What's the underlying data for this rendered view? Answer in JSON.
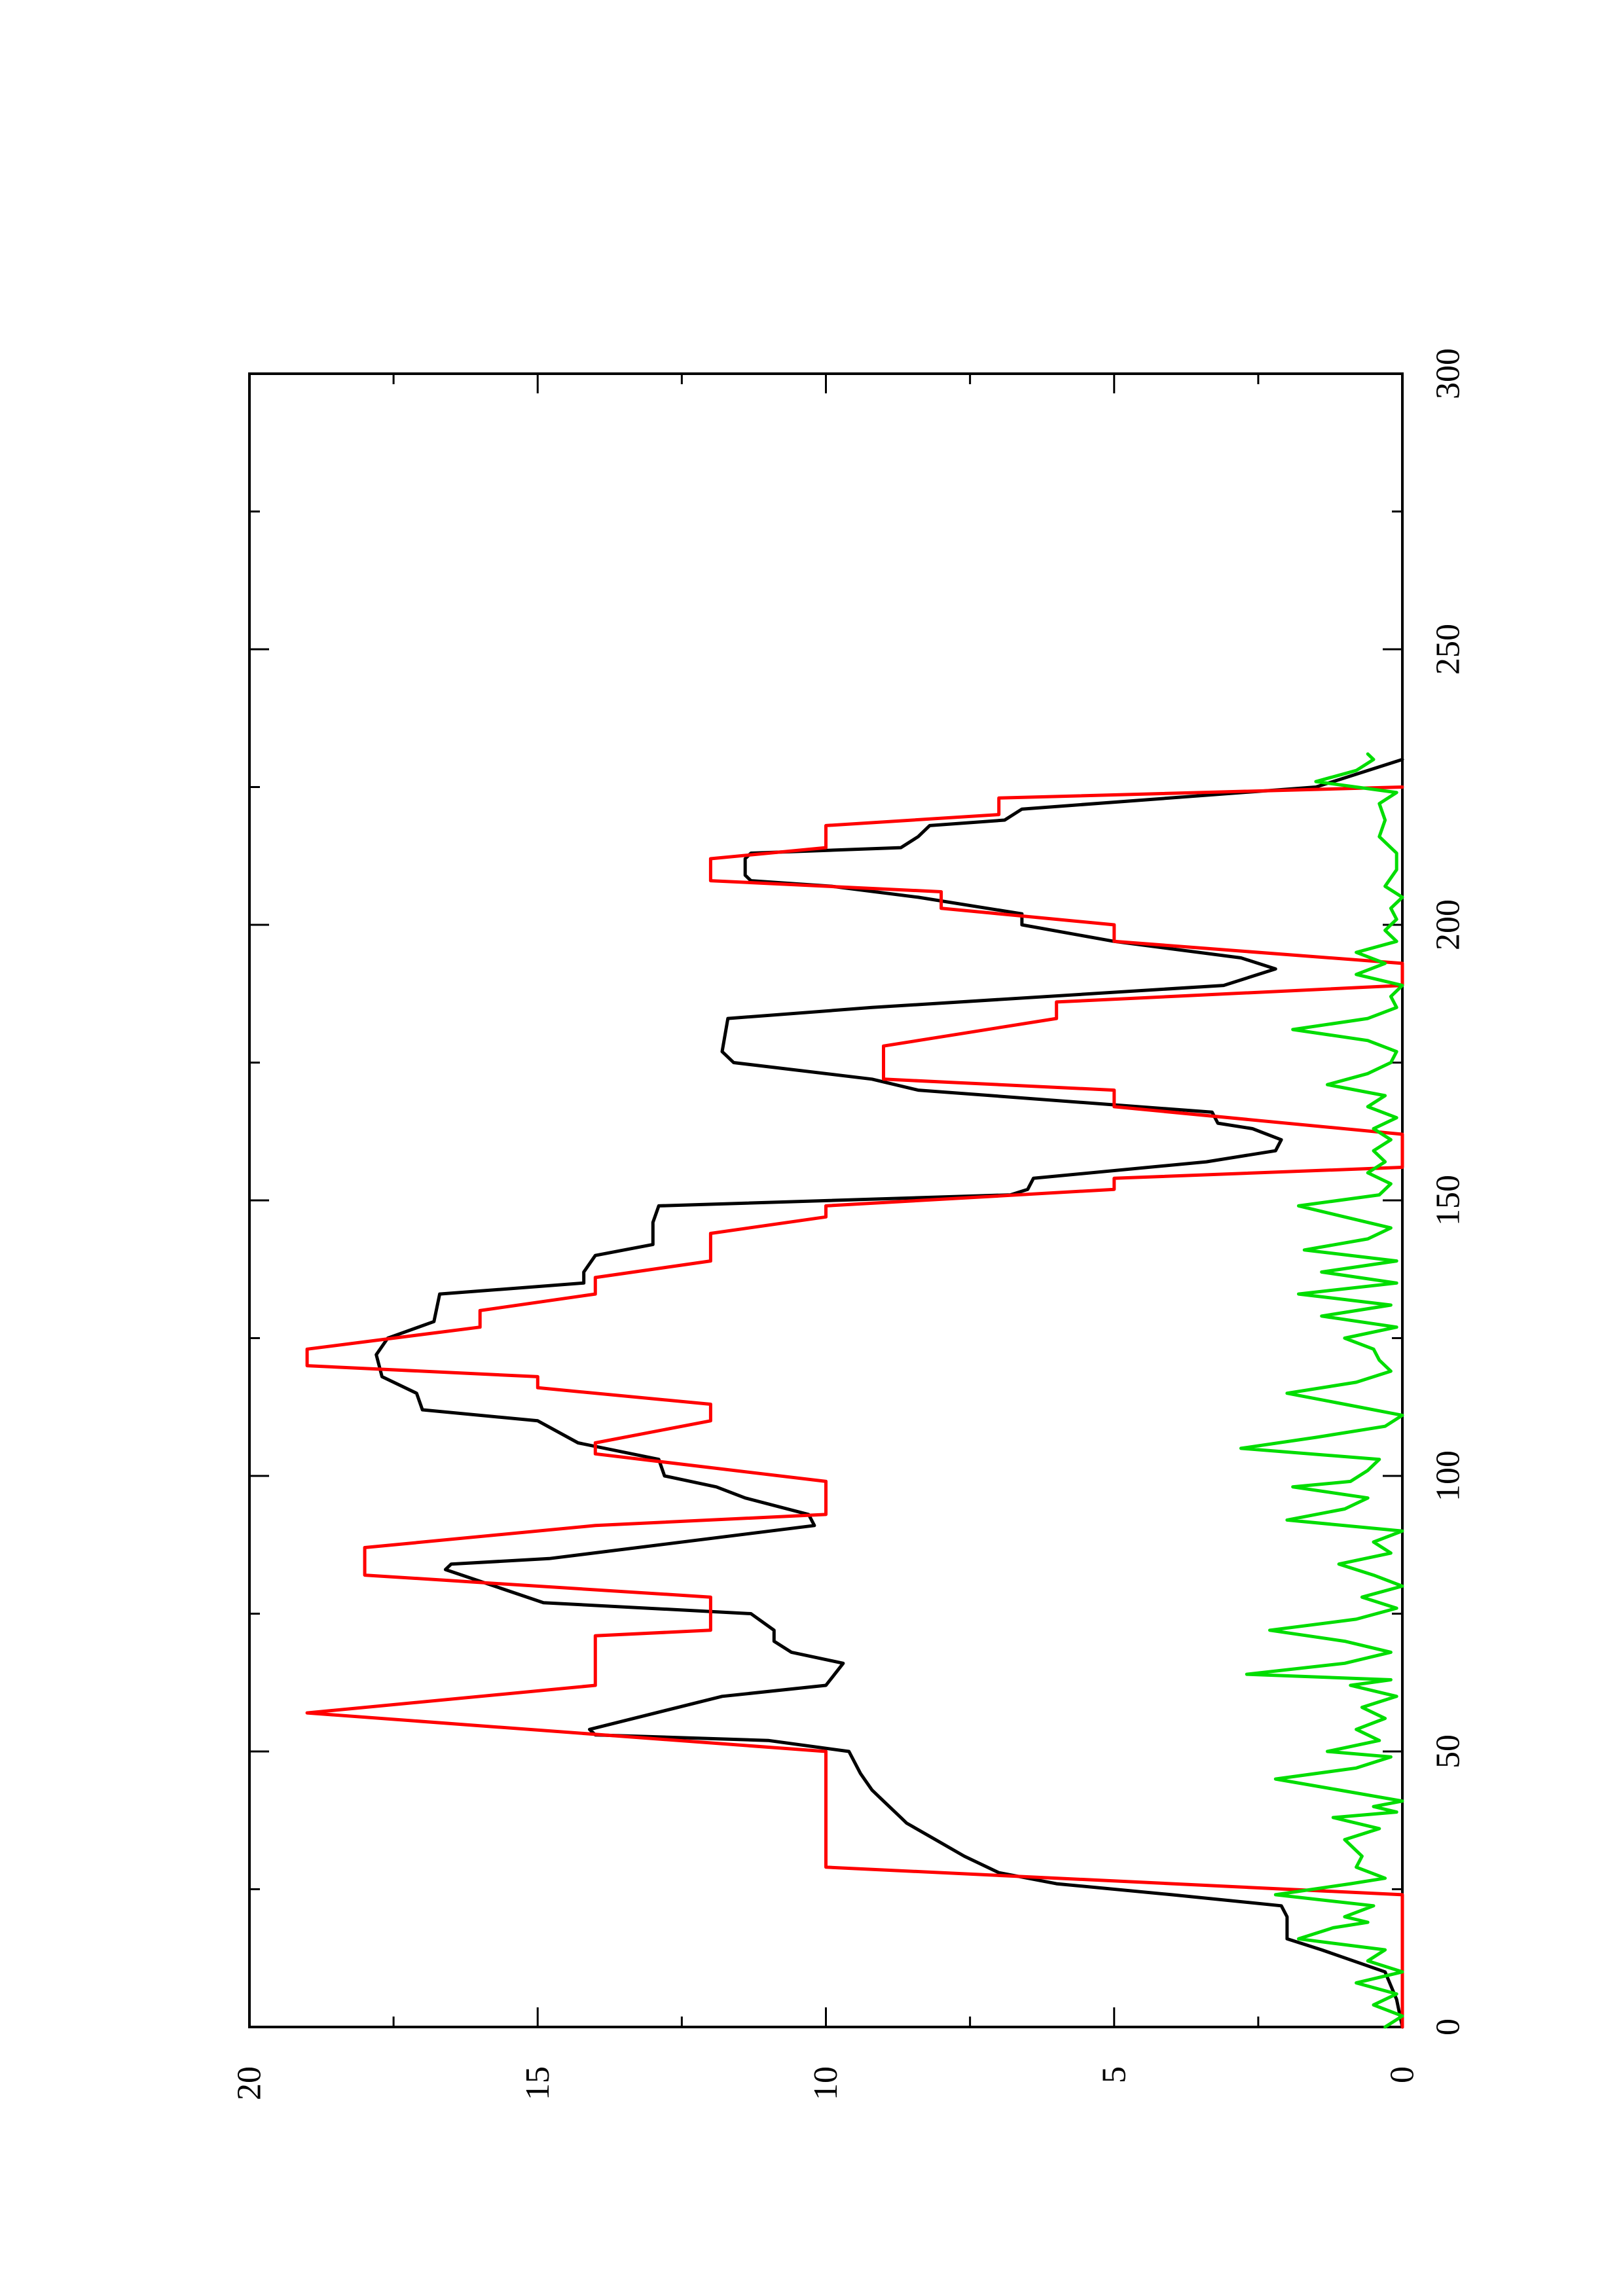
{
  "chart_data": {
    "type": "line",
    "title": "",
    "xlabel": "",
    "ylabel": "",
    "xlim": [
      0,
      300
    ],
    "ylim": [
      0,
      20
    ],
    "x_ticks": [
      "0",
      "50",
      "100",
      "150",
      "200",
      "250",
      "300"
    ],
    "y_ticks": [
      "0",
      "5",
      "10",
      "15",
      "20"
    ],
    "grid": false,
    "legend": "none",
    "orientation": "rotated 90° counter-clockwise on the page",
    "series": [
      {
        "color": "#000000",
        "points": [
          [
            0,
            0
          ],
          [
            5,
            0.1
          ],
          [
            10,
            0.3
          ],
          [
            14,
            1.4
          ],
          [
            16,
            2.0
          ],
          [
            20,
            2.0
          ],
          [
            22,
            2.1
          ],
          [
            24,
            4.0
          ],
          [
            26,
            6.0
          ],
          [
            28,
            7.0
          ],
          [
            31,
            7.6
          ],
          [
            34,
            8.1
          ],
          [
            37,
            8.6
          ],
          [
            38,
            8.7
          ],
          [
            41,
            9.0
          ],
          [
            43,
            9.2
          ],
          [
            46,
            9.4
          ],
          [
            50,
            9.6
          ],
          [
            52,
            11.0
          ],
          [
            53,
            14.0
          ],
          [
            54,
            14.1
          ],
          [
            60,
            11.8
          ],
          [
            62,
            10.0
          ],
          [
            66,
            9.7
          ],
          [
            68,
            10.6
          ],
          [
            70,
            10.9
          ],
          [
            72,
            10.9
          ],
          [
            75,
            11.3
          ],
          [
            77,
            14.9
          ],
          [
            83,
            16.6
          ],
          [
            84,
            16.5
          ],
          [
            85,
            14.8
          ],
          [
            91,
            10.2
          ],
          [
            93,
            10.3
          ],
          [
            96,
            11.4
          ],
          [
            98,
            11.9
          ],
          [
            100,
            12.8
          ],
          [
            103,
            12.9
          ],
          [
            106,
            14.3
          ],
          [
            110,
            15.0
          ],
          [
            112,
            17.0
          ],
          [
            115,
            17.1
          ],
          [
            118,
            17.7
          ],
          [
            122,
            17.8
          ],
          [
            125,
            17.6
          ],
          [
            128,
            16.8
          ],
          [
            133,
            16.7
          ],
          [
            135,
            14.2
          ],
          [
            137,
            14.2
          ],
          [
            140,
            14.0
          ],
          [
            142,
            13.0
          ],
          [
            146,
            13.0
          ],
          [
            149,
            12.9
          ],
          [
            151,
            6.8
          ],
          [
            152,
            6.5
          ],
          [
            154,
            6.4
          ],
          [
            157,
            3.4
          ],
          [
            159,
            2.2
          ],
          [
            161,
            2.1
          ],
          [
            163,
            2.6
          ],
          [
            164,
            3.2
          ],
          [
            166,
            3.3
          ],
          [
            170,
            8.4
          ],
          [
            172,
            9.2
          ],
          [
            175,
            11.6
          ],
          [
            177,
            11.8
          ],
          [
            183,
            11.7
          ],
          [
            185,
            9.2
          ],
          [
            189,
            3.1
          ],
          [
            192,
            2.2
          ],
          [
            194,
            2.8
          ],
          [
            197,
            5.0
          ],
          [
            200,
            6.6
          ],
          [
            202,
            6.6
          ],
          [
            205,
            8.4
          ],
          [
            207,
            9.9
          ],
          [
            208,
            11.3
          ],
          [
            209,
            11.4
          ],
          [
            212,
            11.4
          ],
          [
            213,
            11.3
          ],
          [
            214,
            8.7
          ],
          [
            216,
            8.4
          ],
          [
            218,
            8.2
          ],
          [
            219,
            6.9
          ],
          [
            221,
            6.6
          ],
          [
            225,
            1.5
          ],
          [
            228,
            0.6
          ],
          [
            230,
            0
          ]
        ]
      },
      {
        "color": "#ff0000",
        "points": [
          [
            0,
            0
          ],
          [
            24,
            0
          ],
          [
            29,
            10
          ],
          [
            50,
            10
          ],
          [
            57,
            19
          ],
          [
            62,
            14
          ],
          [
            64,
            14
          ],
          [
            69,
            14
          ],
          [
            71,
            14
          ],
          [
            72,
            12
          ],
          [
            73,
            12
          ],
          [
            77,
            12
          ],
          [
            78,
            12
          ],
          [
            82,
            18
          ],
          [
            87,
            18
          ],
          [
            91,
            14
          ],
          [
            93,
            10
          ],
          [
            95,
            10
          ],
          [
            99,
            10
          ],
          [
            104,
            14
          ],
          [
            106,
            14
          ],
          [
            110,
            12
          ],
          [
            113,
            12
          ],
          [
            116,
            15
          ],
          [
            118,
            15
          ],
          [
            120,
            19
          ],
          [
            123,
            19
          ],
          [
            127,
            16
          ],
          [
            130,
            16
          ],
          [
            133,
            14
          ],
          [
            136,
            14
          ],
          [
            139,
            12
          ],
          [
            144,
            12
          ],
          [
            147,
            10
          ],
          [
            149,
            10
          ],
          [
            152,
            5
          ],
          [
            154,
            5
          ],
          [
            156,
            0
          ],
          [
            162,
            0
          ],
          [
            167,
            5
          ],
          [
            170,
            5
          ],
          [
            172,
            9
          ],
          [
            178,
            9
          ],
          [
            183,
            6
          ],
          [
            186,
            6
          ],
          [
            189,
            0
          ],
          [
            193,
            0
          ],
          [
            197,
            5
          ],
          [
            200,
            5
          ],
          [
            203,
            8
          ],
          [
            206,
            8
          ],
          [
            208,
            12
          ],
          [
            212,
            12
          ],
          [
            214,
            10
          ],
          [
            218,
            10
          ],
          [
            220,
            7
          ],
          [
            223,
            7
          ],
          [
            225,
            0
          ]
        ]
      },
      {
        "color": "#00dd00",
        "points": [
          [
            0,
            0.3
          ],
          [
            2,
            0.0
          ],
          [
            4,
            0.5
          ],
          [
            6,
            0.1
          ],
          [
            8,
            0.8
          ],
          [
            10,
            0.0
          ],
          [
            12,
            0.6
          ],
          [
            14,
            0.3
          ],
          [
            16,
            1.8
          ],
          [
            18,
            1.2
          ],
          [
            19,
            0.6
          ],
          [
            20,
            1.0
          ],
          [
            22,
            0.5
          ],
          [
            24,
            2.2
          ],
          [
            26,
            0.9
          ],
          [
            27,
            0.3
          ],
          [
            29,
            0.8
          ],
          [
            31,
            0.7
          ],
          [
            34,
            1.0
          ],
          [
            36,
            0.4
          ],
          [
            38,
            1.2
          ],
          [
            39,
            0.1
          ],
          [
            40,
            0.5
          ],
          [
            41,
            0.0
          ],
          [
            43,
            1.1
          ],
          [
            45,
            2.2
          ],
          [
            47,
            0.8
          ],
          [
            49,
            0.2
          ],
          [
            50,
            1.3
          ],
          [
            52,
            0.4
          ],
          [
            54,
            0.8
          ],
          [
            56,
            0.3
          ],
          [
            58,
            0.7
          ],
          [
            60,
            0.1
          ],
          [
            62,
            0.9
          ],
          [
            63,
            0.2
          ],
          [
            64,
            2.7
          ],
          [
            66,
            1.0
          ],
          [
            68,
            0.2
          ],
          [
            70,
            1.0
          ],
          [
            72,
            2.3
          ],
          [
            74,
            0.8
          ],
          [
            76,
            0.1
          ],
          [
            78,
            0.7
          ],
          [
            80,
            0.0
          ],
          [
            82,
            0.5
          ],
          [
            84,
            1.1
          ],
          [
            86,
            0.2
          ],
          [
            88,
            0.5
          ],
          [
            90,
            0.0
          ],
          [
            92,
            2.0
          ],
          [
            94,
            1.0
          ],
          [
            96,
            0.6
          ],
          [
            98,
            1.9
          ],
          [
            99,
            0.9
          ],
          [
            101,
            0.6
          ],
          [
            103,
            0.4
          ],
          [
            105,
            2.8
          ],
          [
            107,
            1.5
          ],
          [
            109,
            0.3
          ],
          [
            111,
            0.0
          ],
          [
            113,
            1.0
          ],
          [
            115,
            2.0
          ],
          [
            117,
            0.8
          ],
          [
            119,
            0.2
          ],
          [
            121,
            0.4
          ],
          [
            123,
            0.5
          ],
          [
            125,
            1.0
          ],
          [
            127,
            0.1
          ],
          [
            129,
            1.4
          ],
          [
            131,
            0.2
          ],
          [
            133,
            1.8
          ],
          [
            135,
            0.1
          ],
          [
            137,
            1.4
          ],
          [
            139,
            0.1
          ],
          [
            141,
            1.7
          ],
          [
            143,
            0.6
          ],
          [
            145,
            0.2
          ],
          [
            147,
            1.0
          ],
          [
            149,
            1.8
          ],
          [
            151,
            0.4
          ],
          [
            153,
            0.2
          ],
          [
            155,
            0.6
          ],
          [
            157,
            0.3
          ],
          [
            159,
            0.5
          ],
          [
            161,
            0.2
          ],
          [
            163,
            0.5
          ],
          [
            165,
            0.1
          ],
          [
            167,
            0.6
          ],
          [
            169,
            0.3
          ],
          [
            171,
            1.3
          ],
          [
            173,
            0.6
          ],
          [
            175,
            0.2
          ],
          [
            177,
            0.1
          ],
          [
            179,
            0.6
          ],
          [
            181,
            1.9
          ],
          [
            183,
            0.6
          ],
          [
            185,
            0.1
          ],
          [
            187,
            0.2
          ],
          [
            189,
            0.0
          ],
          [
            191,
            0.8
          ],
          [
            193,
            0.3
          ],
          [
            195,
            0.8
          ],
          [
            197,
            0.1
          ],
          [
            199,
            0.3
          ],
          [
            201,
            0.1
          ],
          [
            203,
            0.2
          ],
          [
            205,
            0.0
          ],
          [
            207,
            0.3
          ],
          [
            210,
            0.1
          ],
          [
            213,
            0.1
          ],
          [
            216,
            0.4
          ],
          [
            219,
            0.3
          ],
          [
            222,
            0.4
          ],
          [
            224,
            0.1
          ],
          [
            226,
            1.5
          ],
          [
            228,
            0.8
          ],
          [
            230,
            0.5
          ],
          [
            231,
            0.6
          ]
        ]
      }
    ]
  }
}
